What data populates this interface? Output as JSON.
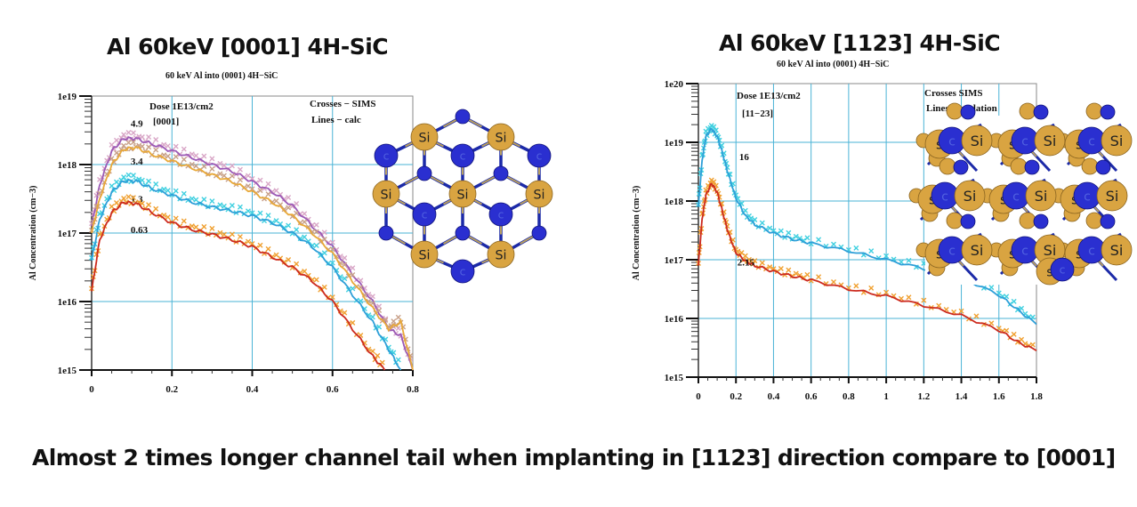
{
  "caption": "Almost 2 times longer channel tail when implanting in [1123] direction compare to [0001]",
  "chart_data": [
    {
      "type": "line",
      "heading": "Al 60keV [0001] 4H-SiC",
      "title": "60 keV Al into (0001) 4H−SiC",
      "xlabel": "",
      "ylabel": "Al Concentration (cm−3)",
      "xlim": [
        0,
        0.8
      ],
      "ylim": [
        1000000000000000.0,
        1e+19
      ],
      "yscale": "log",
      "xticks": [
        "0",
        "0.2",
        "0.4",
        "0.6",
        "0.8"
      ],
      "xtick_values": [
        0,
        0.2,
        0.4,
        0.6,
        0.8
      ],
      "yticks": [
        "1e15",
        "1e16",
        "1e17",
        "1e18",
        "1e19"
      ],
      "ytick_values": [
        15,
        16,
        17,
        18,
        19
      ],
      "grid": true,
      "annotations": [
        "Dose 1E13/cm2",
        "[0001]",
        "Crosses − SIMS",
        "Lines − calc"
      ],
      "series": [
        {
          "name": "4.9",
          "color": "#9b59b6",
          "sims_color": "#d9a7c7",
          "x": [
            0,
            0.02,
            0.05,
            0.08,
            0.11,
            0.15,
            0.2,
            0.25,
            0.3,
            0.35,
            0.4,
            0.45,
            0.5,
            0.55,
            0.6,
            0.65,
            0.7,
            0.74,
            0.77,
            0.8
          ],
          "log10_y": [
            17.1,
            17.7,
            18.2,
            18.38,
            18.38,
            18.3,
            18.2,
            18.1,
            18.0,
            17.9,
            17.75,
            17.6,
            17.4,
            17.1,
            16.8,
            16.4,
            16.0,
            15.6,
            15.5,
            15.0
          ]
        },
        {
          "name": "3.4",
          "color": "#e8a838",
          "sims_color": "#c8a088",
          "x": [
            0,
            0.02,
            0.05,
            0.08,
            0.11,
            0.15,
            0.2,
            0.25,
            0.3,
            0.35,
            0.4,
            0.45,
            0.5,
            0.55,
            0.6,
            0.65,
            0.7,
            0.74,
            0.77,
            0.8
          ],
          "log10_y": [
            17.0,
            17.5,
            18.0,
            18.22,
            18.25,
            18.15,
            18.05,
            17.95,
            17.85,
            17.75,
            17.6,
            17.45,
            17.25,
            17.0,
            16.7,
            16.3,
            15.9,
            15.6,
            15.7,
            15.0
          ]
        },
        {
          "name": "1.3",
          "color": "#2e9fd8",
          "sims_color": "#40d0e0",
          "x": [
            0,
            0.02,
            0.05,
            0.08,
            0.11,
            0.15,
            0.2,
            0.25,
            0.3,
            0.35,
            0.4,
            0.45,
            0.5,
            0.55,
            0.6,
            0.65,
            0.7,
            0.74,
            0.77
          ],
          "log10_y": [
            16.6,
            17.2,
            17.6,
            17.76,
            17.76,
            17.65,
            17.55,
            17.45,
            17.38,
            17.32,
            17.25,
            17.15,
            17.0,
            16.8,
            16.5,
            16.1,
            15.7,
            15.3,
            15.0
          ]
        },
        {
          "name": "0.63",
          "color": "#cc2a1e",
          "sims_color": "#f0a030",
          "x": [
            0,
            0.02,
            0.05,
            0.08,
            0.11,
            0.15,
            0.2,
            0.25,
            0.3,
            0.35,
            0.4,
            0.45,
            0.5,
            0.55,
            0.6,
            0.65,
            0.7,
            0.73
          ],
          "log10_y": [
            16.15,
            16.9,
            17.3,
            17.45,
            17.43,
            17.3,
            17.15,
            17.05,
            16.98,
            16.9,
            16.8,
            16.65,
            16.5,
            16.3,
            16.0,
            15.6,
            15.2,
            15.0
          ]
        }
      ]
    },
    {
      "type": "line",
      "heading": "Al 60keV [1123] 4H-SiC",
      "title": "60 keV Al into (0001) 4H−SiC",
      "xlabel": "",
      "ylabel": "Al Concentration (cm−3)",
      "xlim": [
        0,
        1.8
      ],
      "ylim": [
        1000000000000000.0,
        1e+20
      ],
      "yscale": "log",
      "xticks": [
        "0",
        "0.2",
        "0.4",
        "0.6",
        "0.8",
        "1",
        "1.2",
        "1.4",
        "1.6",
        "1.8"
      ],
      "xtick_values": [
        0,
        0.2,
        0.4,
        0.6,
        0.8,
        1.0,
        1.2,
        1.4,
        1.6,
        1.8
      ],
      "yticks": [
        "1e15",
        "1e16",
        "1e17",
        "1e18",
        "1e19",
        "1e20"
      ],
      "ytick_values": [
        15,
        16,
        17,
        18,
        19,
        20
      ],
      "grid": true,
      "annotations": [
        "Dose 1E13/cm2",
        "[11−23]",
        "Crosses  SIMS",
        "Lines  Simulation"
      ],
      "series": [
        {
          "name": "16",
          "color": "#2e9fd8",
          "sims_color": "#40d0e0",
          "x": [
            0,
            0.02,
            0.04,
            0.07,
            0.1,
            0.13,
            0.16,
            0.2,
            0.25,
            0.3,
            0.4,
            0.5,
            0.6,
            0.8,
            1.0,
            1.2,
            1.4,
            1.6,
            1.7,
            1.8
          ],
          "log10_y": [
            17.9,
            18.7,
            19.1,
            19.23,
            19.1,
            18.8,
            18.45,
            18.05,
            17.75,
            17.6,
            17.45,
            17.35,
            17.28,
            17.15,
            17.0,
            16.85,
            16.7,
            16.4,
            16.15,
            15.9
          ]
        },
        {
          "name": "2.15",
          "color": "#cc2a1e",
          "sims_color": "#f0a030",
          "x": [
            0,
            0.02,
            0.04,
            0.07,
            0.1,
            0.13,
            0.16,
            0.2,
            0.25,
            0.3,
            0.4,
            0.5,
            0.6,
            0.8,
            1.0,
            1.2,
            1.4,
            1.6,
            1.7,
            1.8
          ],
          "log10_y": [
            16.9,
            17.7,
            18.1,
            18.3,
            18.15,
            17.8,
            17.45,
            17.12,
            16.98,
            16.9,
            16.8,
            16.72,
            16.65,
            16.5,
            16.38,
            16.22,
            16.05,
            15.8,
            15.6,
            15.45
          ]
        }
      ]
    }
  ],
  "insets": [
    {
      "name": "sic-lattice-0001",
      "atom_labels": [
        "Si",
        "c"
      ]
    },
    {
      "name": "sic-lattice-1123",
      "atom_labels": [
        "Si",
        "c"
      ]
    }
  ],
  "colors": {
    "grid": "#4ab3d6",
    "si_atom": "#d9a441",
    "c_atom": "#2a2fd0",
    "bond": "#1c2aa8"
  }
}
